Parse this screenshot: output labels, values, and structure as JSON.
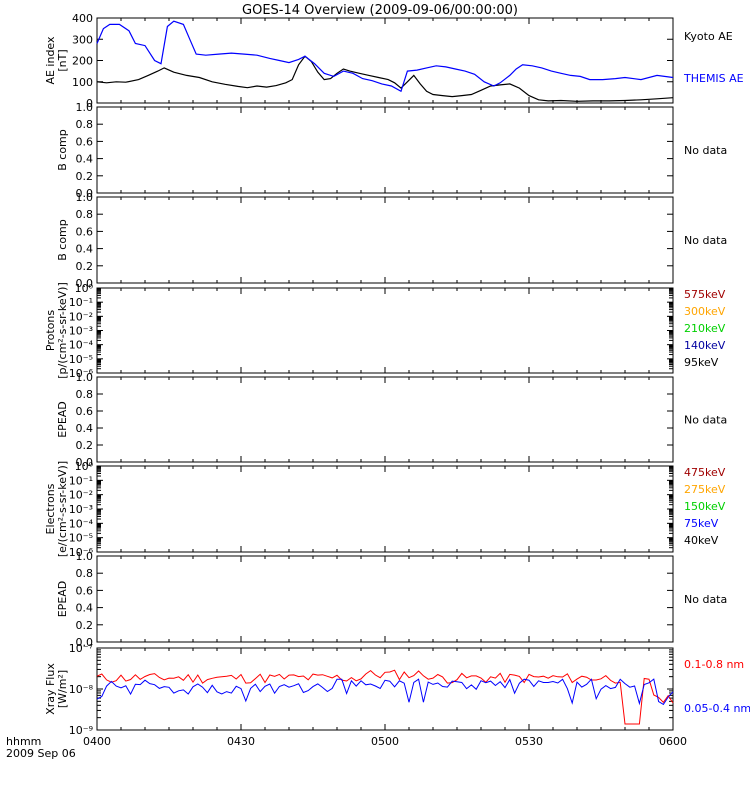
{
  "title": "GOES-14 Overview (2009-09-06/00:00:00)",
  "footer": {
    "line1": "hhmm",
    "line2": "2009 Sep 06"
  },
  "x_ticks": [
    "0400",
    "0430",
    "0500",
    "0530",
    "0600"
  ],
  "colors": {
    "black": "#000000",
    "blue": "#0000ff",
    "red": "#ff0000",
    "dark_red": "#a00000",
    "orange": "#ffa500",
    "green": "#00d000"
  },
  "chart_data": [
    {
      "type": "line",
      "ylabel": [
        "AE index",
        "[nT]"
      ],
      "ylim": [
        0,
        400
      ],
      "y_ticks": [
        "400",
        "300",
        "200",
        "100",
        "0"
      ],
      "x_range_minutes": [
        0,
        120
      ],
      "series": [
        {
          "name": "Kyoto AE",
          "color": "#000000",
          "points": [
            [
              0,
              100
            ],
            [
              3,
              95
            ],
            [
              6,
              100
            ],
            [
              9,
              98
            ],
            [
              13,
              110
            ],
            [
              16,
              130
            ],
            [
              19,
              150
            ],
            [
              21,
              165
            ],
            [
              24,
              145
            ],
            [
              28,
              130
            ],
            [
              32,
              120
            ],
            [
              36,
              100
            ],
            [
              40,
              88
            ],
            [
              44,
              78
            ],
            [
              47,
              72
            ],
            [
              50,
              80
            ],
            [
              53,
              75
            ],
            [
              56,
              82
            ],
            [
              59,
              95
            ],
            [
              61,
              110
            ],
            [
              63,
              180
            ],
            [
              65,
              220
            ],
            [
              67,
              195
            ],
            [
              69,
              145
            ],
            [
              71,
              110
            ],
            [
              73,
              115
            ],
            [
              75,
              140
            ],
            [
              77,
              160
            ],
            [
              79,
              150
            ],
            [
              82,
              140
            ],
            [
              85,
              130
            ],
            [
              88,
              120
            ],
            [
              91,
              110
            ],
            [
              93,
              95
            ],
            [
              95,
              70
            ],
            [
              97,
              100
            ],
            [
              99,
              130
            ],
            [
              101,
              90
            ],
            [
              103,
              55
            ],
            [
              105,
              40
            ],
            [
              108,
              35
            ],
            [
              111,
              30
            ],
            [
              114,
              35
            ],
            [
              117,
              40
            ],
            [
              120,
              60
            ],
            [
              123,
              80
            ],
            [
              126,
              85
            ],
            [
              129,
              90
            ],
            [
              132,
              70
            ],
            [
              135,
              35
            ],
            [
              138,
              15
            ],
            [
              141,
              10
            ],
            [
              145,
              12
            ],
            [
              150,
              8
            ],
            [
              155,
              10
            ],
            [
              160,
              10
            ],
            [
              165,
              12
            ],
            [
              170,
              15
            ],
            [
              175,
              20
            ],
            [
              180,
              25
            ]
          ]
        },
        {
          "name": "THEMIS AE",
          "color": "#0000ff",
          "points": [
            [
              0,
              280
            ],
            [
              2,
              350
            ],
            [
              4,
              370
            ],
            [
              7,
              370
            ],
            [
              10,
              340
            ],
            [
              12,
              280
            ],
            [
              15,
              270
            ],
            [
              18,
              200
            ],
            [
              20,
              185
            ],
            [
              22,
              360
            ],
            [
              24,
              385
            ],
            [
              27,
              370
            ],
            [
              29,
              300
            ],
            [
              31,
              230
            ],
            [
              34,
              225
            ],
            [
              38,
              230
            ],
            [
              42,
              235
            ],
            [
              46,
              230
            ],
            [
              50,
              225
            ],
            [
              54,
              210
            ],
            [
              57,
              200
            ],
            [
              60,
              190
            ],
            [
              63,
              205
            ],
            [
              65,
              220
            ],
            [
              68,
              185
            ],
            [
              71,
              140
            ],
            [
              74,
              125
            ],
            [
              77,
              150
            ],
            [
              80,
              140
            ],
            [
              83,
              115
            ],
            [
              86,
              105
            ],
            [
              89,
              90
            ],
            [
              92,
              80
            ],
            [
              95,
              55
            ],
            [
              97,
              150
            ],
            [
              100,
              155
            ],
            [
              103,
              165
            ],
            [
              106,
              175
            ],
            [
              109,
              170
            ],
            [
              112,
              160
            ],
            [
              115,
              150
            ],
            [
              118,
              135
            ],
            [
              121,
              100
            ],
            [
              124,
              80
            ],
            [
              126,
              95
            ],
            [
              129,
              130
            ],
            [
              131,
              160
            ],
            [
              133,
              180
            ],
            [
              136,
              175
            ],
            [
              139,
              165
            ],
            [
              142,
              150
            ],
            [
              145,
              140
            ],
            [
              148,
              130
            ],
            [
              151,
              125
            ],
            [
              154,
              110
            ],
            [
              158,
              110
            ],
            [
              162,
              115
            ],
            [
              165,
              120
            ],
            [
              170,
              110
            ],
            [
              175,
              130
            ],
            [
              180,
              120
            ]
          ]
        }
      ]
    },
    {
      "type": "line",
      "ylabel": [
        "B comp"
      ],
      "ylim": [
        0,
        1
      ],
      "y_ticks": [
        "1.0",
        "0.8",
        "0.6",
        "0.4",
        "0.2",
        "0.0"
      ],
      "note": "No data",
      "series": []
    },
    {
      "type": "line",
      "ylabel": [
        "B comp"
      ],
      "ylim": [
        0,
        1
      ],
      "y_ticks": [
        "1.0",
        "0.8",
        "0.6",
        "0.4",
        "0.2",
        "0.0"
      ],
      "note": "No data",
      "series": []
    },
    {
      "type": "line",
      "ylabel": [
        "Protons",
        "[p/(cm²-s-sr-keV)]"
      ],
      "log_scale": true,
      "ylim": [
        1e-06,
        1
      ],
      "y_ticks": [
        "10⁰",
        "10⁻¹",
        "10⁻²",
        "10⁻³",
        "10⁻⁴",
        "10⁻⁵",
        "10⁻⁶"
      ],
      "legend": [
        {
          "label": "575keV",
          "color": "#a00000"
        },
        {
          "label": "300keV",
          "color": "#ffa500"
        },
        {
          "label": "210keV",
          "color": "#00d000"
        },
        {
          "label": "140keV",
          "color": "#0000a0"
        },
        {
          "label": "95keV",
          "color": "#000000"
        }
      ],
      "series": []
    },
    {
      "type": "line",
      "ylabel": [
        "EPEAD"
      ],
      "ylim": [
        0,
        1
      ],
      "y_ticks": [
        "1.0",
        "0.8",
        "0.6",
        "0.4",
        "0.2",
        "0.0"
      ],
      "note": "No data",
      "series": []
    },
    {
      "type": "line",
      "ylabel": [
        "Electrons",
        "[e/(cm²-s-sr-keV)]"
      ],
      "log_scale": true,
      "ylim": [
        1e-06,
        1
      ],
      "y_ticks": [
        "10⁰",
        "10⁻¹",
        "10⁻²",
        "10⁻³",
        "10⁻⁴",
        "10⁻⁵",
        "10⁻⁶"
      ],
      "legend": [
        {
          "label": "475keV",
          "color": "#a00000"
        },
        {
          "label": "275keV",
          "color": "#ffa500"
        },
        {
          "label": "150keV",
          "color": "#00d000"
        },
        {
          "label": "75keV",
          "color": "#0000ff"
        },
        {
          "label": "40keV",
          "color": "#000000"
        }
      ],
      "series": []
    },
    {
      "type": "line",
      "ylabel": [
        "EPEAD"
      ],
      "ylim": [
        0,
        1
      ],
      "y_ticks": [
        "1.0",
        "0.8",
        "0.6",
        "0.4",
        "0.2",
        "0.0"
      ],
      "note": "No data",
      "series": []
    },
    {
      "type": "line",
      "ylabel": [
        "Xray Flux",
        "[W/m²]"
      ],
      "log_scale": true,
      "ylim": [
        1e-09,
        1e-07
      ],
      "y_ticks": [
        "10⁻⁷",
        "10⁻⁸",
        "10⁻⁹"
      ],
      "series": [
        {
          "name": "0.1-0.8 nm",
          "color": "#ff0000",
          "noise_seed": 11
        },
        {
          "name": "0.05-0.4 nm",
          "color": "#0000ff",
          "noise_seed": 29
        }
      ]
    }
  ]
}
